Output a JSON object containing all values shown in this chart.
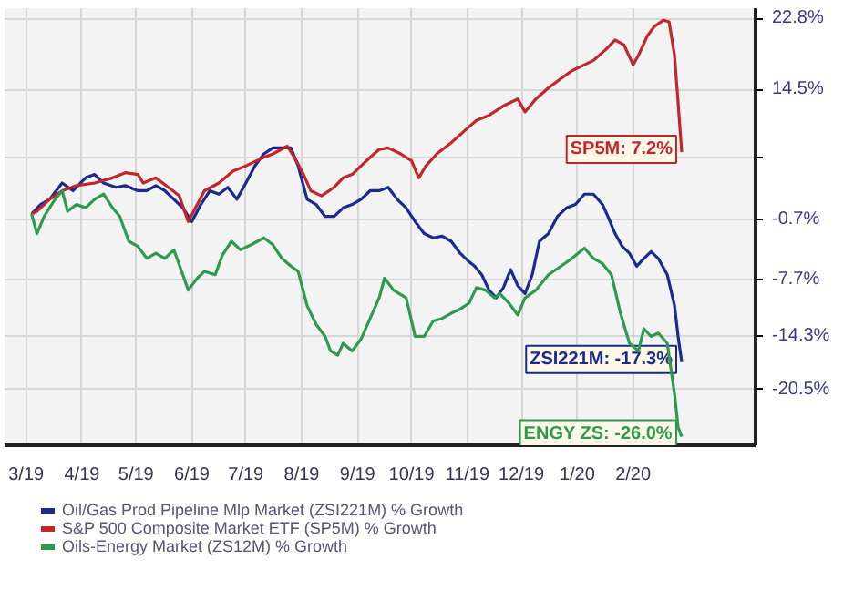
{
  "chart_data": {
    "type": "line",
    "xlim": [
      "2019-02-17",
      "2020-04-09"
    ],
    "xticks": [
      {
        "value": "2019-03-01",
        "label": "3/19"
      },
      {
        "value": "2019-04-01",
        "label": "4/19"
      },
      {
        "value": "2019-05-01",
        "label": "5/19"
      },
      {
        "value": "2019-06-01",
        "label": "6/19"
      },
      {
        "value": "2019-07-01",
        "label": "7/19"
      },
      {
        "value": "2019-08-01",
        "label": "8/19"
      },
      {
        "value": "2019-09-01",
        "label": "9/19"
      },
      {
        "value": "2019-10-01",
        "label": "10/19"
      },
      {
        "value": "2019-11-01",
        "label": "11/19"
      },
      {
        "value": "2019-12-01",
        "label": "12/19"
      },
      {
        "value": "2020-01-01",
        "label": "1/20"
      },
      {
        "value": "2020-02-01",
        "label": "2/20"
      }
    ],
    "ylim": [
      -27,
      24
    ],
    "yticks": [
      {
        "value": 22.8,
        "label": "22.8%"
      },
      {
        "value": 14.5,
        "label": "14.5%"
      },
      {
        "value": 6.6,
        "label": null
      },
      {
        "value": -0.7,
        "label": "-0.7%"
      },
      {
        "value": -7.7,
        "label": "-7.7%"
      },
      {
        "value": -14.3,
        "label": "-14.3%"
      },
      {
        "value": -20.5,
        "label": "-20.5%"
      }
    ],
    "grid": true,
    "legend": "bottom",
    "line_style": "solid",
    "series": [
      {
        "name": "Oil/Gas Prod Pipeline Mlp Market (ZSI221M) % Growth",
        "color": "#1a2a8f",
        "x": [
          "2019-03-04",
          "2019-03-09",
          "2019-03-14",
          "2019-03-21",
          "2019-03-27",
          "2019-04-03",
          "2019-04-08",
          "2019-04-13",
          "2019-04-20",
          "2019-04-25",
          "2019-05-02",
          "2019-05-07",
          "2019-05-12",
          "2019-05-17",
          "2019-05-22",
          "2019-05-27",
          "2019-06-01",
          "2019-06-06",
          "2019-06-11",
          "2019-06-16",
          "2019-06-21",
          "2019-06-26",
          "2019-07-01",
          "2019-07-06",
          "2019-07-11",
          "2019-07-16",
          "2019-07-21",
          "2019-07-26",
          "2019-07-30",
          "2019-08-04",
          "2019-08-09",
          "2019-08-14",
          "2019-08-19",
          "2019-08-24",
          "2019-08-29",
          "2019-09-03",
          "2019-09-08",
          "2019-09-13",
          "2019-09-18",
          "2019-09-23",
          "2019-09-28",
          "2019-10-03",
          "2019-10-08",
          "2019-10-13",
          "2019-10-18",
          "2019-10-23",
          "2019-10-28",
          "2019-11-02",
          "2019-11-05",
          "2019-11-09",
          "2019-11-13",
          "2019-11-17",
          "2019-11-21",
          "2019-11-25",
          "2019-11-29",
          "2019-12-03",
          "2019-12-07",
          "2019-12-11",
          "2019-12-16",
          "2019-12-21",
          "2019-12-26",
          "2019-12-31",
          "2020-01-05",
          "2020-01-10",
          "2020-01-15",
          "2020-01-18",
          "2020-01-22",
          "2020-01-26",
          "2020-01-30",
          "2020-02-03",
          "2020-02-07",
          "2020-02-11",
          "2020-02-15",
          "2020-02-20",
          "2020-02-24",
          "2020-02-26",
          "2020-02-28"
        ],
        "values": [
          0,
          1.1,
          1.7,
          3.6,
          2.7,
          4.2,
          4.6,
          3.6,
          3.1,
          3.3,
          2.7,
          2.7,
          3.3,
          2.7,
          1.7,
          0.7,
          -0.9,
          1.1,
          2.7,
          2.3,
          3.1,
          1.7,
          3.6,
          5.6,
          7.0,
          7.7,
          7.7,
          7.7,
          5.6,
          1.7,
          1.1,
          -0.3,
          -0.3,
          0.7,
          1.1,
          1.7,
          2.7,
          2.7,
          3.1,
          1.7,
          0.7,
          -0.9,
          -2.3,
          -2.8,
          -2.6,
          -3.2,
          -4.6,
          -5.6,
          -6.1,
          -7.1,
          -8.9,
          -9.8,
          -8.6,
          -6.5,
          -8.4,
          -9.3,
          -7.1,
          -3.2,
          -2.3,
          -0.3,
          0.7,
          1.1,
          2.3,
          2.3,
          1.1,
          -0.3,
          -2.3,
          -3.8,
          -4.6,
          -6.1,
          -5.2,
          -4.4,
          -5.2,
          -7.1,
          -10.7,
          -14.3,
          -17.3
        ]
      },
      {
        "name": "S&P 500 Composite Market ETF (SP5M) % Growth",
        "color": "#c0262b",
        "x": [
          "2019-03-04",
          "2019-03-07",
          "2019-03-14",
          "2019-03-21",
          "2019-03-29",
          "2019-04-08",
          "2019-04-18",
          "2019-04-25",
          "2019-05-02",
          "2019-05-05",
          "2019-05-12",
          "2019-05-19",
          "2019-05-25",
          "2019-05-30",
          "2019-06-03",
          "2019-06-08",
          "2019-06-16",
          "2019-06-24",
          "2019-07-01",
          "2019-07-11",
          "2019-07-16",
          "2019-07-24",
          "2019-07-28",
          "2019-08-02",
          "2019-08-06",
          "2019-08-12",
          "2019-08-19",
          "2019-08-24",
          "2019-08-29",
          "2019-09-03",
          "2019-09-08",
          "2019-09-13",
          "2019-09-18",
          "2019-09-25",
          "2019-10-01",
          "2019-10-05",
          "2019-10-09",
          "2019-10-15",
          "2019-10-23",
          "2019-10-31",
          "2019-11-06",
          "2019-11-13",
          "2019-11-21",
          "2019-11-29",
          "2019-12-03",
          "2019-12-09",
          "2019-12-16",
          "2019-12-23",
          "2019-12-29",
          "2020-01-05",
          "2020-01-10",
          "2020-01-17",
          "2020-01-22",
          "2020-01-27",
          "2020-02-01",
          "2020-02-04",
          "2020-02-09",
          "2020-02-13",
          "2020-02-18",
          "2020-02-21",
          "2020-02-24",
          "2020-02-26",
          "2020-02-28"
        ],
        "values": [
          0,
          0.3,
          1.7,
          2.7,
          3.3,
          3.6,
          4.2,
          4.8,
          4.6,
          3.6,
          4.2,
          3.1,
          2.1,
          -0.9,
          0.7,
          2.7,
          3.6,
          5.0,
          5.6,
          6.6,
          7.0,
          7.9,
          6.6,
          4.6,
          2.7,
          2.1,
          3.1,
          4.2,
          4.6,
          5.6,
          6.6,
          7.5,
          7.7,
          7.0,
          6.2,
          4.2,
          5.6,
          7.0,
          8.3,
          9.8,
          10.9,
          11.5,
          12.6,
          13.4,
          11.9,
          13.4,
          14.7,
          15.8,
          16.7,
          17.4,
          17.9,
          19.2,
          20.3,
          19.7,
          17.4,
          18.5,
          20.8,
          21.9,
          22.6,
          22.4,
          18.5,
          13.0,
          7.2
        ]
      },
      {
        "name": "Oils-Energy Market (ZS12M) % Growth",
        "color": "#2e9a4e",
        "x": [
          "2019-03-04",
          "2019-03-07",
          "2019-03-11",
          "2019-03-17",
          "2019-03-21",
          "2019-03-24",
          "2019-03-29",
          "2019-04-03",
          "2019-04-08",
          "2019-04-13",
          "2019-04-18",
          "2019-04-22",
          "2019-04-27",
          "2019-05-02",
          "2019-05-07",
          "2019-05-12",
          "2019-05-17",
          "2019-05-22",
          "2019-05-27",
          "2019-05-30",
          "2019-06-04",
          "2019-06-08",
          "2019-06-14",
          "2019-06-18",
          "2019-06-23",
          "2019-06-28",
          "2019-07-04",
          "2019-07-11",
          "2019-07-16",
          "2019-07-21",
          "2019-07-26",
          "2019-07-30",
          "2019-08-04",
          "2019-08-09",
          "2019-08-14",
          "2019-08-17",
          "2019-08-21",
          "2019-08-24",
          "2019-08-29",
          "2019-09-03",
          "2019-09-08",
          "2019-09-13",
          "2019-09-16",
          "2019-09-21",
          "2019-09-28",
          "2019-10-03",
          "2019-10-08",
          "2019-10-13",
          "2019-10-18",
          "2019-10-23",
          "2019-10-28",
          "2019-11-02",
          "2019-11-06",
          "2019-11-11",
          "2019-11-16",
          "2019-11-19",
          "2019-11-24",
          "2019-11-29",
          "2019-12-03",
          "2019-12-09",
          "2019-12-16",
          "2019-12-23",
          "2019-12-29",
          "2020-01-05",
          "2020-01-10",
          "2020-01-15",
          "2020-01-20",
          "2020-01-25",
          "2020-01-30",
          "2020-02-04",
          "2020-02-07",
          "2020-02-11",
          "2020-02-15",
          "2020-02-20",
          "2020-02-24",
          "2020-02-26",
          "2020-02-28"
        ],
        "values": [
          0,
          -2.3,
          -0.3,
          1.7,
          2.7,
          0.3,
          1.1,
          0.7,
          1.7,
          2.3,
          0.7,
          -0.3,
          -3.2,
          -3.8,
          -5.2,
          -4.6,
          -5.2,
          -4.2,
          -7.1,
          -8.9,
          -7.5,
          -6.7,
          -7.1,
          -4.8,
          -3.2,
          -4.2,
          -3.6,
          -2.8,
          -3.6,
          -5.2,
          -6.1,
          -6.7,
          -10.7,
          -12.9,
          -14.3,
          -16.0,
          -16.5,
          -15.1,
          -16.0,
          -14.6,
          -12.2,
          -9.8,
          -7.5,
          -8.9,
          -9.8,
          -14.3,
          -14.3,
          -12.5,
          -12.2,
          -11.6,
          -11.1,
          -10.4,
          -8.6,
          -8.9,
          -9.8,
          -9.3,
          -10.4,
          -11.8,
          -9.8,
          -8.9,
          -7.1,
          -6.1,
          -5.2,
          -4.0,
          -5.2,
          -5.8,
          -7.1,
          -11.6,
          -15.1,
          -16.0,
          -13.4,
          -14.3,
          -13.9,
          -15.1,
          -21.0,
          -24.9,
          -26.0
        ]
      }
    ],
    "annotations": [
      {
        "text": "ZSI221M: -17.3%",
        "x": "2020-02-28",
        "y": -17.3
      },
      {
        "text": "SP5M: 7.2%",
        "x": "2020-02-28",
        "y": 7.2
      },
      {
        "text": "ENGY ZS: -26.0%",
        "x": "2020-02-28",
        "y": -26.0
      }
    ]
  }
}
